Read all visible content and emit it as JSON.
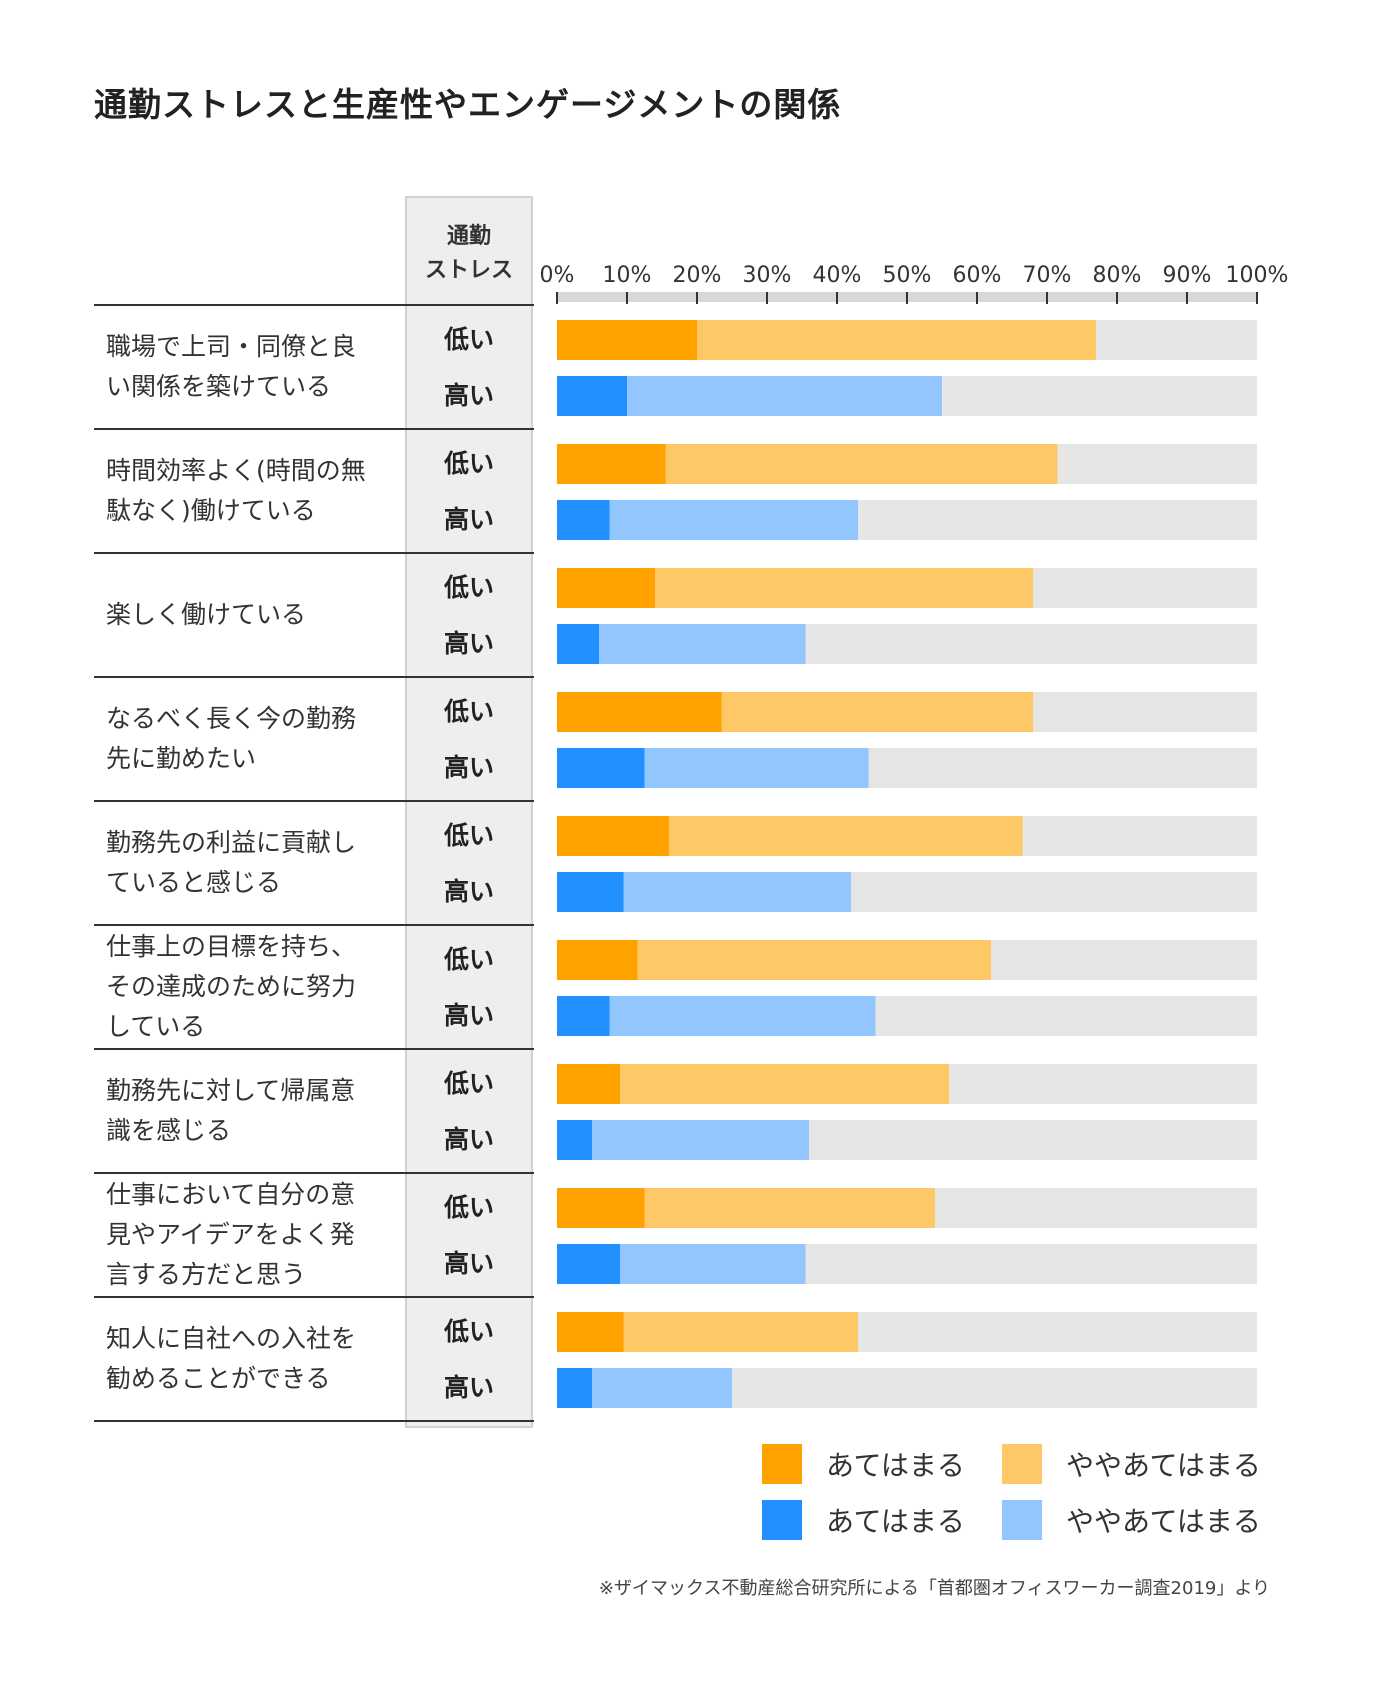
{
  "chart_data": {
    "type": "bar",
    "orientation": "horizontal",
    "stacked": true,
    "title": "通勤ストレスと生産性やエンゲージメントの関係",
    "group_header": [
      "通勤",
      "ストレス"
    ],
    "group_labels": [
      "低い",
      "高い"
    ],
    "x_ticks": [
      "0%",
      "10%",
      "20%",
      "30%",
      "40%",
      "50%",
      "60%",
      "70%",
      "80%",
      "90%",
      "100%"
    ],
    "xlim": [
      0,
      100
    ],
    "categories": [
      "職場で上司・同僚と良\nい関係を築けている",
      "時間効率よく(時間の無\n駄なく)働けている",
      "楽しく働けている",
      "なるべく長く今の勤務\n先に勤めたい",
      "勤務先の利益に貢献し\nていると感じる",
      "仕事上の目標を持ち、\nその達成のために努力\nしている",
      "勤務先に対して帰属意\n識を感じる",
      "仕事において自分の意\n見やアイデアをよく発\n言する方だと思う",
      "知人に自社への入社を\n勧めることができる"
    ],
    "series": [
      {
        "name": "あてはまる",
        "group": "低い",
        "color": "#FFA200",
        "values": [
          20,
          15.5,
          14,
          23.5,
          16,
          11.5,
          9,
          12.5,
          9.5
        ]
      },
      {
        "name": "ややあてはまる",
        "group": "低い",
        "color": "#FFC867",
        "values": [
          57,
          56,
          54,
          44.5,
          50.5,
          50.5,
          47,
          41.5,
          33.5
        ]
      },
      {
        "name": "あてはまる",
        "group": "高い",
        "color": "#2290FF",
        "values": [
          10,
          7.5,
          6,
          12.5,
          9.5,
          7.5,
          5,
          9,
          5
        ]
      },
      {
        "name": "ややあてはまる",
        "group": "高い",
        "color": "#93C5FF",
        "values": [
          45,
          35.5,
          29.5,
          32,
          32.5,
          38,
          31,
          26.5,
          20
        ]
      }
    ],
    "track_color": "#E6E6E6",
    "legend": [
      {
        "label": "あてはまる",
        "color": "#FFA200"
      },
      {
        "label": "ややあてはまる",
        "color": "#FFC867"
      },
      {
        "label": "あてはまる",
        "color": "#2290FF"
      },
      {
        "label": "ややあてはまる",
        "color": "#93C5FF"
      }
    ],
    "legend_position": "bottom-right",
    "grid": false
  },
  "footnote": "※ザイマックス不動産総合研究所による「首都圏オフィスワーカー調査2019」より"
}
